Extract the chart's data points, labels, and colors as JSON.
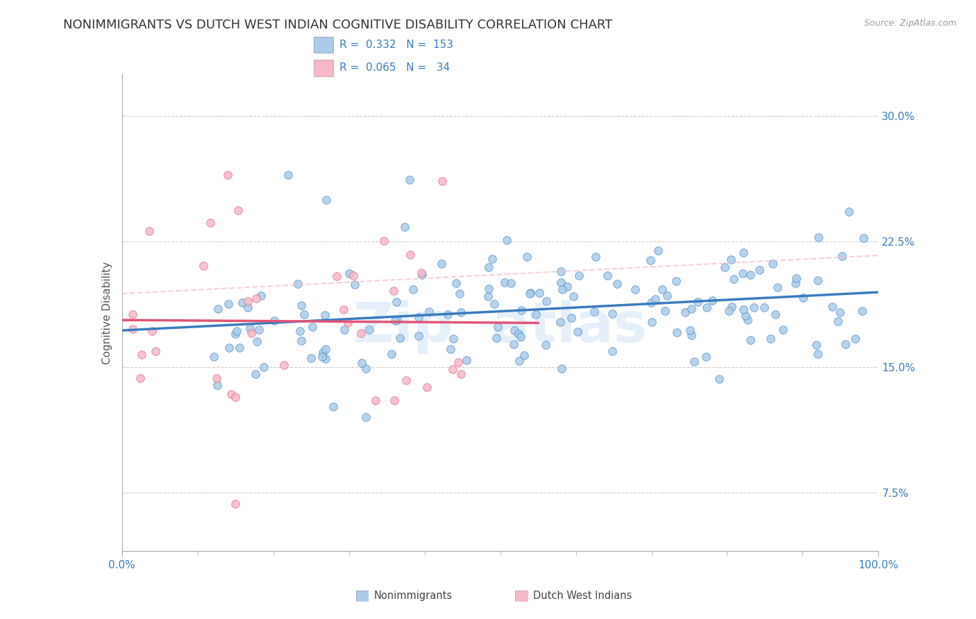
{
  "title": "NONIMMIGRANTS VS DUTCH WEST INDIAN COGNITIVE DISABILITY CORRELATION CHART",
  "source_text": "Source: ZipAtlas.com",
  "ylabel": "Cognitive Disability",
  "legend_label1": "Nonimmigrants",
  "legend_label2": "Dutch West Indians",
  "R1": 0.332,
  "N1": 153,
  "R2": 0.065,
  "N2": 34,
  "xlim": [
    0.0,
    1.0
  ],
  "ylim": [
    0.04,
    0.325
  ],
  "yticks": [
    0.075,
    0.15,
    0.225,
    0.3
  ],
  "ytick_labels": [
    "7.5%",
    "15.0%",
    "22.5%",
    "30.0%"
  ],
  "xticks": [
    0.0,
    1.0
  ],
  "xtick_labels": [
    "0.0%",
    "100.0%"
  ],
  "color_blue": "#aacce8",
  "color_pink": "#f4b8c8",
  "line_color_blue": "#3a7cbf",
  "line_color_pink": "#e05575",
  "line_color_dash": "#f4b8c8",
  "bg_color": "#ffffff",
  "grid_color": "#cccccc",
  "title_fontsize": 13,
  "axis_label_fontsize": 11,
  "tick_fontsize": 11
}
